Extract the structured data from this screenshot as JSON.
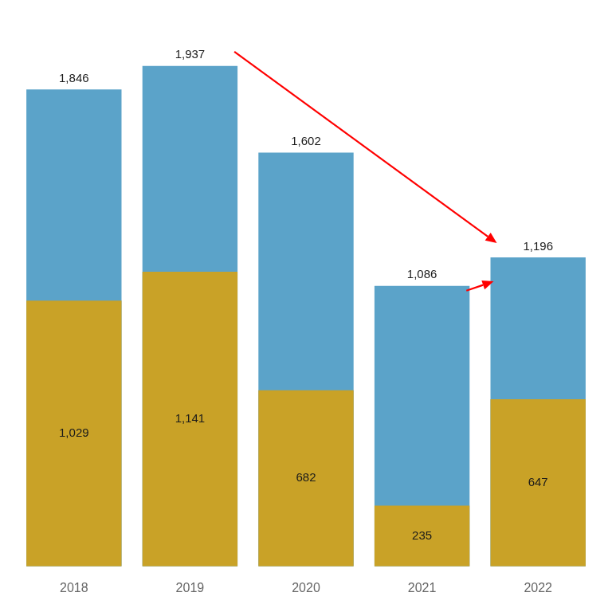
{
  "chart_data": {
    "type": "bar",
    "categories": [
      "2018",
      "2019",
      "2020",
      "2021",
      "2022"
    ],
    "series": [
      {
        "color": "#5BA3C9",
        "values": [
          1846,
          1937,
          1602,
          1086,
          1196
        ],
        "value_labels": [
          "1,846",
          "1,937",
          "1,602",
          "1,086",
          "1,196"
        ]
      },
      {
        "color": "#C9A227",
        "values": [
          1029,
          1141,
          682,
          235,
          647
        ],
        "value_labels": [
          "1,029",
          "1,141",
          "682",
          "235",
          "647"
        ]
      }
    ],
    "ylim": [
      0,
      2100
    ],
    "grid": false,
    "data_labels": true,
    "tick_labels": "x"
  }
}
